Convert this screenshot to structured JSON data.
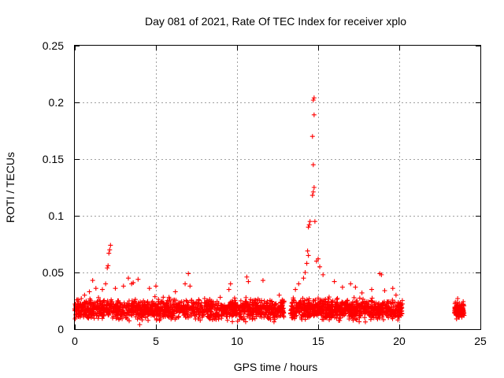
{
  "chart_data": {
    "type": "scatter",
    "title": "Day 081 of 2021, Rate Of TEC Index for receiver xplo",
    "xlabel": "GPS time / hours",
    "ylabel": "ROTI / TECUs",
    "xlim": [
      0,
      25
    ],
    "ylim": [
      0,
      0.25
    ],
    "x_ticks": [
      0,
      5,
      10,
      15,
      20,
      25
    ],
    "x_tick_labels": [
      "0",
      "5",
      "10",
      "15",
      "20",
      "25"
    ],
    "y_ticks": [
      0,
      0.05,
      0.1,
      0.15,
      0.2,
      0.25
    ],
    "y_tick_labels": [
      "0",
      "0.05",
      "0.1",
      "0.15",
      "0.2",
      "0.25"
    ],
    "grid": true,
    "marker": "+",
    "series_color": "#ff0000",
    "series": [
      {
        "name": "ROTI",
        "clusters": [
          {
            "x_range": [
              0.0,
              12.9
            ],
            "y_range": [
              0.005,
              0.03
            ],
            "count": 1400
          },
          {
            "x_range": [
              13.3,
              20.2
            ],
            "y_range": [
              0.005,
              0.03
            ],
            "count": 900
          },
          {
            "x_range": [
              23.4,
              24.0
            ],
            "y_range": [
              0.007,
              0.026
            ],
            "count": 120
          }
        ],
        "points": [
          [
            0.1,
            0.016
          ],
          [
            0.2,
            0.018
          ],
          [
            0.4,
            0.027
          ],
          [
            0.6,
            0.03
          ],
          [
            0.9,
            0.033
          ],
          [
            1.1,
            0.043
          ],
          [
            1.3,
            0.036
          ],
          [
            1.7,
            0.035
          ],
          [
            1.9,
            0.04
          ],
          [
            2.0,
            0.054
          ],
          [
            2.05,
            0.056
          ],
          [
            2.1,
            0.067
          ],
          [
            2.15,
            0.07
          ],
          [
            2.2,
            0.074
          ],
          [
            2.5,
            0.036
          ],
          [
            3.0,
            0.038
          ],
          [
            3.3,
            0.045
          ],
          [
            3.5,
            0.04
          ],
          [
            3.6,
            0.041
          ],
          [
            3.9,
            0.044
          ],
          [
            4.0,
            0.004
          ],
          [
            4.6,
            0.036
          ],
          [
            5.0,
            0.038
          ],
          [
            6.2,
            0.033
          ],
          [
            6.8,
            0.04
          ],
          [
            7.0,
            0.049
          ],
          [
            7.1,
            0.038
          ],
          [
            8.0,
            0.027
          ],
          [
            9.5,
            0.035
          ],
          [
            9.6,
            0.04
          ],
          [
            10.6,
            0.046
          ],
          [
            10.7,
            0.042
          ],
          [
            11.6,
            0.043
          ],
          [
            12.6,
            0.03
          ],
          [
            13.6,
            0.035
          ],
          [
            13.8,
            0.04
          ],
          [
            14.1,
            0.045
          ],
          [
            14.2,
            0.05
          ],
          [
            14.3,
            0.058
          ],
          [
            14.35,
            0.069
          ],
          [
            14.4,
            0.065
          ],
          [
            14.4,
            0.09
          ],
          [
            14.45,
            0.092
          ],
          [
            14.5,
            0.095
          ],
          [
            14.65,
            0.118
          ],
          [
            14.7,
            0.121
          ],
          [
            14.75,
            0.125
          ],
          [
            14.65,
            0.17
          ],
          [
            14.75,
            0.189
          ],
          [
            14.7,
            0.145
          ],
          [
            14.7,
            0.202
          ],
          [
            14.75,
            0.204
          ],
          [
            14.8,
            0.095
          ],
          [
            14.9,
            0.06
          ],
          [
            15.0,
            0.062
          ],
          [
            15.1,
            0.055
          ],
          [
            15.3,
            0.048
          ],
          [
            16.0,
            0.042
          ],
          [
            16.5,
            0.037
          ],
          [
            17.0,
            0.04
          ],
          [
            17.3,
            0.037
          ],
          [
            17.7,
            0.032
          ],
          [
            18.3,
            0.035
          ],
          [
            18.8,
            0.049
          ],
          [
            18.9,
            0.048
          ],
          [
            19.1,
            0.034
          ],
          [
            19.6,
            0.036
          ],
          [
            19.8,
            0.03
          ],
          [
            23.6,
            0.027
          ],
          [
            23.7,
            0.023
          ]
        ]
      }
    ]
  }
}
